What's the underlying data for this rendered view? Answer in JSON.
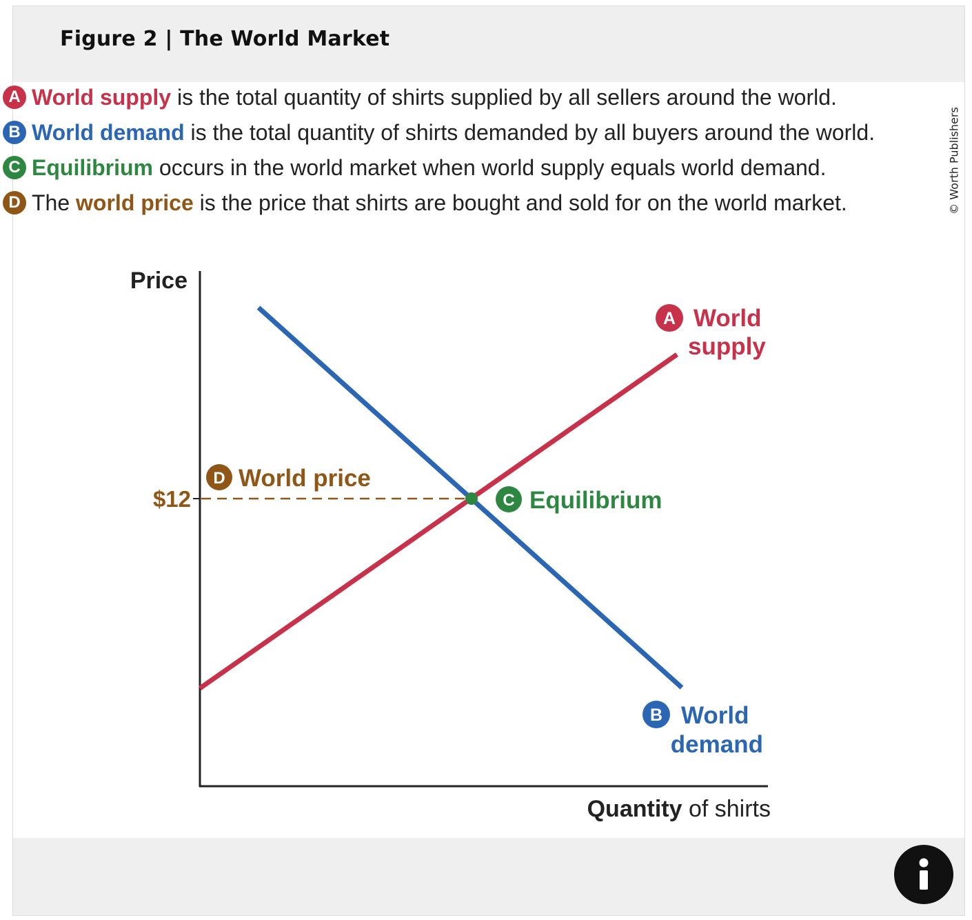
{
  "figure": {
    "title": "Figure 2 | The World Market",
    "credit": "© Worth Publishers"
  },
  "legend": [
    {
      "badge": "A",
      "color": "#c8314a",
      "pre": "",
      "keyword": "World supply",
      "post": " is the total quantity of shirts supplied by all sellers around the world."
    },
    {
      "badge": "B",
      "color": "#2a66b3",
      "pre": "",
      "keyword": "World demand",
      "post": " is the total quantity of shirts demanded by all buyers around the world."
    },
    {
      "badge": "C",
      "color": "#2e8741",
      "pre": "",
      "keyword": "Equilibrium",
      "post": " occurs in the world market when world supply equals world demand."
    },
    {
      "badge": "D",
      "color": "#8f5616",
      "pre": "The ",
      "keyword": "world price",
      "post": " is the price that shirts are bought and sold for on the world market."
    }
  ],
  "chart_data": {
    "type": "line",
    "title": "",
    "xlabel_bold": "Quantity",
    "xlabel_rest": " of shirts",
    "ylabel": "Price",
    "price_tick": "$12",
    "equilibrium_price": 12,
    "series": [
      {
        "name": "World supply",
        "badge": "A",
        "label_line1": "World",
        "label_line2": "supply",
        "color": "#c8314a"
      },
      {
        "name": "World demand",
        "badge": "B",
        "label_line1": "World",
        "label_line2": "demand",
        "color": "#2a66b3"
      }
    ],
    "annotations": {
      "equilibrium": {
        "badge": "C",
        "text": "Equilibrium",
        "color": "#2e8741"
      },
      "world_price": {
        "badge": "D",
        "text": "World price",
        "color": "#8f5616"
      }
    }
  },
  "colors": {
    "supply": "#c8314a",
    "demand": "#2a66b3",
    "equilibrium": "#2e8741",
    "world_price": "#8f5616",
    "axis": "#222222"
  },
  "icons": {
    "info": "info-icon"
  }
}
